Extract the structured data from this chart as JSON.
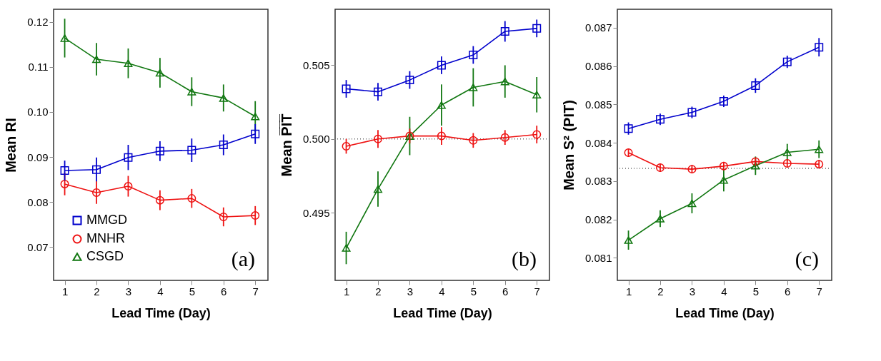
{
  "chart_data": [
    {
      "type": "line",
      "xlabel": "Lead Time (Day)",
      "ylabel": "Mean RI",
      "x": [
        1,
        2,
        3,
        4,
        5,
        6,
        7
      ],
      "xlim": [
        0.65,
        7.4
      ],
      "xticks": [
        1,
        2,
        3,
        4,
        5,
        6,
        7
      ],
      "ylim": [
        0.0626,
        0.1228
      ],
      "yticks": [
        0.07,
        0.08,
        0.09,
        {
          "value": 0.1,
          "label": "0.10"
        },
        0.11,
        0.12
      ],
      "grid": false,
      "legend": "bottom left",
      "line_style": "solid",
      "annotations": [
        "(a)"
      ],
      "series": [
        {
          "name": "MMGD",
          "color": "#0000cc",
          "marker": "square",
          "values": [
            0.087,
            0.0872,
            0.0899,
            0.0913,
            0.0915,
            0.0927,
            0.0951
          ],
          "errors": [
            0.0022,
            0.0027,
            0.0028,
            0.0022,
            0.0026,
            0.0023,
            0.0022
          ]
        },
        {
          "name": "MNHR",
          "color": "#ee1111",
          "marker": "circle",
          "values": [
            0.084,
            0.0821,
            0.0835,
            0.0804,
            0.0808,
            0.0767,
            0.077
          ],
          "errors": [
            0.0025,
            0.0025,
            0.0023,
            0.0022,
            0.0021,
            0.0021,
            0.0021
          ]
        },
        {
          "name": "CSGD",
          "color": "#117711",
          "marker": "triangle",
          "values": [
            0.1164,
            0.1117,
            0.1108,
            0.1087,
            0.1045,
            0.1031,
            0.099
          ],
          "errors": [
            0.0043,
            0.0036,
            0.0033,
            0.0033,
            0.0032,
            0.003,
            0.0034
          ]
        }
      ]
    },
    {
      "type": "line",
      "xlabel": "Lead Time (Day)",
      "ylabel": "Mean P̅I̅T̅",
      "x": [
        1,
        2,
        3,
        4,
        5,
        6,
        7
      ],
      "xlim": [
        0.65,
        7.4
      ],
      "xticks": [
        1,
        2,
        3,
        4,
        5,
        6,
        7
      ],
      "ylim": [
        0.4904,
        0.5088
      ],
      "yticks": [
        0.495,
        {
          "value": 0.5,
          "label": "0.500"
        },
        0.505
      ],
      "grid": false,
      "legend": false,
      "line_style": "solid",
      "annotations": [
        "(b)"
      ],
      "ref_lines": [
        {
          "axis": "y",
          "value": 0.5,
          "color": "#666666",
          "line_style": "dotted"
        }
      ],
      "series": [
        {
          "color": "#0000cc",
          "marker": "square",
          "values": [
            0.5034,
            0.5032,
            0.504,
            0.505,
            0.5057,
            0.5073,
            0.5075
          ],
          "errors": [
            0.0006,
            0.0006,
            0.0006,
            0.0006,
            0.0006,
            0.0007,
            0.0006
          ]
        },
        {
          "color": "#ee1111",
          "marker": "circle",
          "values": [
            0.4995,
            0.5,
            0.5002,
            0.5002,
            0.4999,
            0.5001,
            0.5003
          ],
          "errors": [
            0.0005,
            0.0006,
            0.0005,
            0.0006,
            0.0005,
            0.0005,
            0.0006
          ]
        },
        {
          "color": "#117711",
          "marker": "triangle",
          "values": [
            0.4926,
            0.4966,
            0.5002,
            0.5023,
            0.5035,
            0.5039,
            0.503
          ],
          "errors": [
            0.0011,
            0.0012,
            0.0013,
            0.0014,
            0.0013,
            0.0011,
            0.0012
          ]
        }
      ]
    },
    {
      "type": "line",
      "xlabel": "Lead Time (Day)",
      "ylabel": "Mean S² (PIT)",
      "x": [
        1,
        2,
        3,
        4,
        5,
        6,
        7
      ],
      "xlim": [
        0.65,
        7.4
      ],
      "xticks": [
        1,
        2,
        3,
        4,
        5,
        6,
        7
      ],
      "ylim": [
        0.08041,
        0.08748
      ],
      "yticks": [
        0.081,
        0.082,
        0.083,
        0.084,
        0.085,
        0.086,
        0.087
      ],
      "grid": false,
      "legend": false,
      "line_style": "solid",
      "annotations": [
        "(c)"
      ],
      "ref_lines": [
        {
          "axis": "y",
          "value": 0.08333,
          "color": "#666666",
          "line_style": "dotted"
        }
      ],
      "series": [
        {
          "color": "#0000cc",
          "marker": "square",
          "values": [
            0.08437,
            0.08461,
            0.08479,
            0.08508,
            0.08549,
            0.08611,
            0.08649
          ],
          "errors": [
            0.00016,
            0.00015,
            0.00015,
            0.00015,
            0.00019,
            0.00016,
            0.00024
          ]
        },
        {
          "color": "#ee1111",
          "marker": "circle",
          "values": [
            0.08374,
            0.08335,
            0.08331,
            0.08339,
            0.08351,
            0.08346,
            0.08344
          ],
          "errors": [
            0.00011,
            0.00011,
            0.00011,
            0.00011,
            0.00011,
            0.00011,
            0.00011
          ]
        },
        {
          "color": "#117711",
          "marker": "triangle",
          "values": [
            0.08146,
            0.08202,
            0.08242,
            0.08303,
            0.0834,
            0.08375,
            0.08383
          ],
          "errors": [
            0.00025,
            0.00022,
            0.00026,
            0.0003,
            0.00024,
            0.00022,
            0.00023
          ]
        }
      ]
    }
  ]
}
